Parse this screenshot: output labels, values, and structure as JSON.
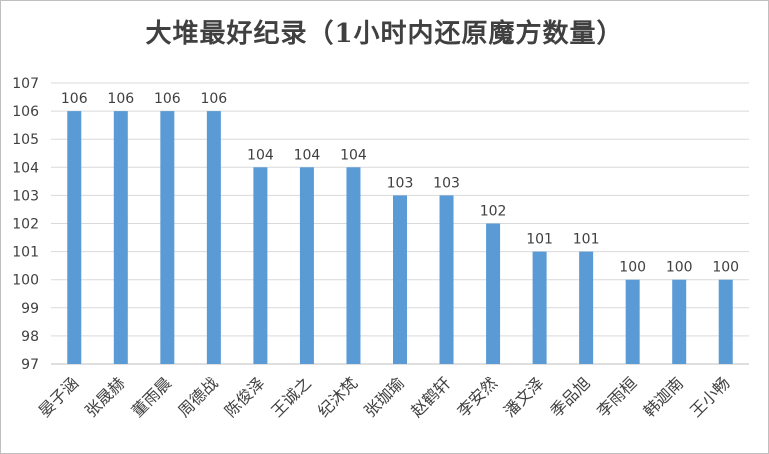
{
  "chart_data": {
    "type": "bar",
    "title": "大堆最好纪录（1小时内还原魔方数量）",
    "categories": [
      "晏子涵",
      "张晟赫",
      "董雨晨",
      "周德战",
      "陈俊泽",
      "王诚之",
      "纪沐梵",
      "张珈瑜",
      "赵鹤轩",
      "李安然",
      "潘文泽",
      "季品旭",
      "李雨桓",
      "韩迦南",
      "王小畅"
    ],
    "values": [
      106,
      106,
      106,
      106,
      104,
      104,
      104,
      103,
      103,
      102,
      101,
      101,
      100,
      100,
      100
    ],
    "data_labels": [
      "106",
      "106",
      "106",
      "106",
      "104",
      "104",
      "104",
      "103",
      "103",
      "102",
      "101",
      "101",
      "100",
      "100",
      "100"
    ],
    "ylim": [
      97,
      107
    ],
    "yticks": [
      "97",
      "98",
      "99",
      "100",
      "101",
      "102",
      "103",
      "104",
      "105",
      "106",
      "107"
    ],
    "grid": true,
    "legend": "none",
    "bar_color": "#5b9bd5",
    "grid_color": "#d9d9d9"
  }
}
